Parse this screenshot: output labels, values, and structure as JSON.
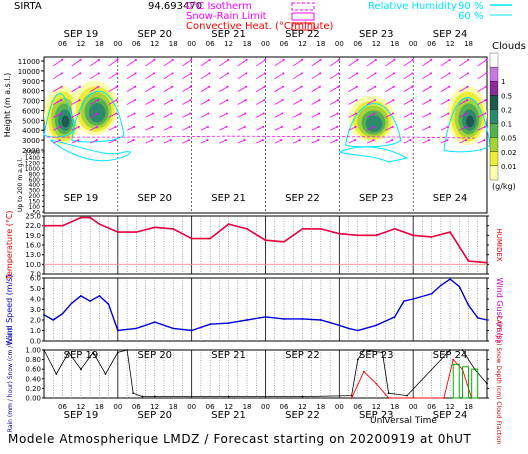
{
  "header": {
    "station": "SIRTA",
    "coords": "94.693470",
    "legend": [
      {
        "label": "0°C Isotherm",
        "color": "#ff00ff"
      },
      {
        "label": "Snow-Rain Limit",
        "color": "#ff00ff"
      },
      {
        "label": "Convective Heat. (°C/minute)",
        "color": "#ff0000"
      }
    ],
    "rh_label": "Relative Humidity",
    "rh_levels": [
      "90 %",
      "60 %"
    ],
    "rh_color": "#00e5ff"
  },
  "colors": {
    "temperature": "#e8003c",
    "wind": "#0000d8",
    "rain": "#ff0000",
    "cape": "#000000",
    "snow_depth": "#00b000",
    "wind_arrow": "#ff00ff",
    "clouds": [
      "#fdfdb0",
      "#ecec3a",
      "#a6d23a",
      "#56b050",
      "#2e8a6e",
      "#1c5a50",
      "#8c2a96",
      "#c878e0",
      "#ffffff"
    ]
  },
  "days": [
    "SEP 19",
    "SEP 20",
    "SEP 21",
    "SEP 22",
    "SEP 23",
    "SEP 24"
  ],
  "hour_ticks": [
    "06",
    "12",
    "18",
    "00"
  ],
  "cloud_scale": {
    "title": "Clouds",
    "ticks": [
      "1",
      "0.5",
      "0.2",
      "0.1",
      "0.05",
      "0.02",
      "0.01"
    ],
    "unit": "(g/kg)"
  },
  "chart_data": [
    {
      "type": "heatmap",
      "title": "",
      "ylabel": "Height (m a.s.l.)",
      "ylabel2": "Up to 200 m a.g.l.",
      "yticks_upper": [
        11000,
        10000,
        9000,
        8000,
        7000,
        6000,
        5000,
        4000,
        3000,
        2000
      ],
      "yticks_lower": [
        1500,
        1400,
        1200,
        1000,
        800,
        600,
        400,
        300,
        200,
        150,
        100,
        50
      ],
      "cloud_blobs": [
        {
          "name": "cloud-sep19",
          "t": [
            0,
            12
          ],
          "h": [
            2500,
            8500
          ],
          "max": 1.0
        },
        {
          "name": "cloud-sep20",
          "t": [
            9,
            24
          ],
          "h": [
            3500,
            9000
          ],
          "max": 0.5
        },
        {
          "name": "cloud-sep22",
          "t": [
            99,
            114
          ],
          "h": [
            2800,
            7500
          ],
          "max": 0.5
        },
        {
          "name": "cloud-sep24",
          "t": [
            131,
            144
          ],
          "h": [
            2500,
            8500
          ],
          "max": 1.0
        }
      ]
    },
    {
      "type": "line",
      "name": "temperature",
      "ylabel": "Temperature (°C)",
      "ylabel2": "HUMIDEX",
      "y_ticks": [
        "25.0",
        "22.0",
        "19.0",
        "16.0",
        "13.0",
        "10.0",
        "7.0"
      ],
      "ylim": [
        7,
        25
      ],
      "x_hours": [
        0,
        6,
        12,
        15,
        18,
        24,
        30,
        36,
        42,
        48,
        54,
        60,
        66,
        72,
        78,
        84,
        90,
        96,
        102,
        108,
        114,
        120,
        126,
        132,
        138,
        144
      ],
      "values": [
        22,
        22,
        24.5,
        24.5,
        22.5,
        20,
        20,
        21.5,
        21,
        18,
        18,
        22.5,
        21,
        17.5,
        17,
        21,
        21,
        19.5,
        19,
        19,
        21,
        19,
        18.5,
        20,
        11,
        10.5
      ]
    },
    {
      "type": "line",
      "name": "wind-speed",
      "ylabel": "Wind Speed (m/s)",
      "ylabel2": "Wind Gust (m/s)",
      "y_ticks": [
        "6.0",
        "5.0",
        "4.0",
        "3.0",
        "2.0",
        "1.0",
        "0.0"
      ],
      "ylim": [
        0,
        6
      ],
      "x_hours": [
        0,
        3,
        6,
        9,
        12,
        15,
        18,
        21,
        24,
        30,
        36,
        42,
        48,
        54,
        60,
        66,
        72,
        78,
        84,
        90,
        96,
        99,
        102,
        108,
        114,
        117,
        120,
        126,
        129,
        132,
        135,
        138,
        141,
        144
      ],
      "values": [
        2.5,
        2.0,
        2.6,
        3.6,
        4.3,
        3.8,
        4.3,
        3.5,
        1.0,
        1.2,
        1.8,
        1.2,
        1.0,
        1.6,
        1.7,
        2.0,
        2.3,
        2.1,
        2.1,
        2.0,
        1.5,
        1.2,
        1.0,
        1.5,
        2.3,
        3.8,
        4.0,
        4.5,
        5.3,
        5.9,
        5.2,
        3.4,
        2.2,
        2.0
      ]
    },
    {
      "type": "line",
      "name": "precipitation",
      "ylabel": "Rain (mm / hour) Snow (cm / hour)",
      "ylabel2": "CAPE (J/g) Snow Depth (cm) Cloud Fraction",
      "y_ticks": [
        "1.00",
        "0.80",
        "0.60",
        "0.40",
        "0.20",
        "0.00"
      ],
      "ylim": [
        0,
        1
      ],
      "cloud_fraction_x": [
        0,
        4,
        8,
        12,
        16,
        20,
        24,
        27,
        29,
        32,
        36,
        60,
        84,
        100,
        102,
        104,
        110,
        112,
        118,
        132,
        136,
        140,
        144
      ],
      "cloud_fraction": [
        1.0,
        0.5,
        0.95,
        0.6,
        0.95,
        0.5,
        0.95,
        1.0,
        0.1,
        0.03,
        0.03,
        0.03,
        0.03,
        0.05,
        0.8,
        1.0,
        0.95,
        0.1,
        0.05,
        1.0,
        1.0,
        0.6,
        0.3
      ],
      "rain_x": [
        100,
        104,
        108,
        112,
        130,
        133,
        136,
        139
      ],
      "rain": [
        0.0,
        0.55,
        0.3,
        0.0,
        0.0,
        0.8,
        0.6,
        0.0
      ],
      "snow_bars_hours": [
        134,
        137,
        140
      ],
      "snow_bars_values": [
        0.7,
        0.65,
        0.6
      ]
    }
  ],
  "x_axis_label": "Universal Time",
  "footer": "Modele Atmospherique LMDZ / Forecast starting on 20200919 at 0hUT"
}
